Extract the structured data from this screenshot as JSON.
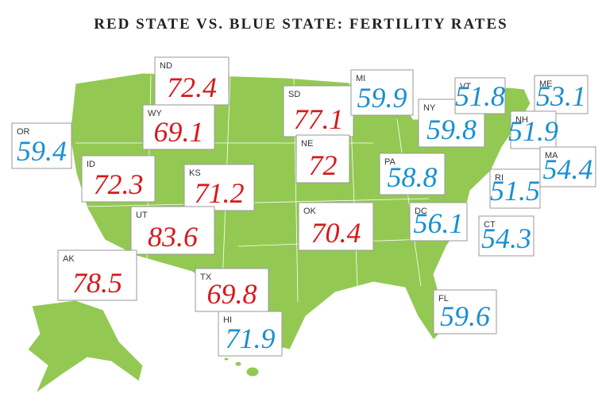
{
  "title": "RED STATE VS. BLUE STATE: FERTILITY RATES",
  "callouts": [
    {
      "state": "ND",
      "value": 72.4,
      "color": "#d7191c"
    },
    {
      "state": "WY",
      "value": 69.1,
      "color": "#d7191c"
    },
    {
      "state": "SD",
      "value": 77.1,
      "color": "#d7191c"
    },
    {
      "state": "NE",
      "value": 72,
      "color": "#d7191c"
    },
    {
      "state": "ID",
      "value": 72.3,
      "color": "#d7191c"
    },
    {
      "state": "KS",
      "value": 71.2,
      "color": "#d7191c"
    },
    {
      "state": "UT",
      "value": 83.6,
      "color": "#d7191c"
    },
    {
      "state": "OK",
      "value": 70.4,
      "color": "#d7191c"
    },
    {
      "state": "AK",
      "value": 78.5,
      "color": "#d7191c"
    },
    {
      "state": "TX",
      "value": 69.8,
      "color": "#d7191c"
    },
    {
      "state": "OR",
      "value": 59.4,
      "color": "#1a8fd0"
    },
    {
      "state": "MI",
      "value": 59.9,
      "color": "#1a8fd0"
    },
    {
      "state": "NY",
      "value": 59.8,
      "color": "#1a8fd0"
    },
    {
      "state": "VT",
      "value": 51.8,
      "color": "#1a8fd0"
    },
    {
      "state": "ME",
      "value": 53.1,
      "color": "#1a8fd0"
    },
    {
      "state": "NH",
      "value": 51.9,
      "color": "#1a8fd0"
    },
    {
      "state": "MA",
      "value": 54.4,
      "color": "#1a8fd0"
    },
    {
      "state": "PA",
      "value": 58.8,
      "color": "#1a8fd0"
    },
    {
      "state": "RI",
      "value": 51.5,
      "color": "#1a8fd0"
    },
    {
      "state": "DC",
      "value": 56.1,
      "color": "#1a8fd0"
    },
    {
      "state": "CT",
      "value": 54.3,
      "color": "#1a8fd0"
    },
    {
      "state": "FL",
      "value": 59.6,
      "color": "#1a8fd0"
    },
    {
      "state": "HI",
      "value": 71.9,
      "color": "#1a8fd0"
    }
  ]
}
